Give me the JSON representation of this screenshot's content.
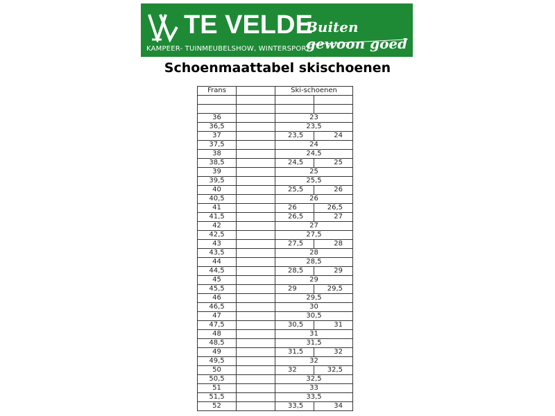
{
  "logo": {
    "brand": "TE VELDE",
    "subtitle": "KAMPEER- TUINMEUBELSHOW, WINTERSPORT",
    "slogan": "Buiten gewoon goed",
    "color": "#1e8a35"
  },
  "title": "Schoenmaattabel skischoenen",
  "table": {
    "headers": {
      "frans": "Frans",
      "extra": "",
      "ski": "Ski-schoenen"
    },
    "rows": [
      {
        "frans": "36",
        "ski": [
          "23"
        ]
      },
      {
        "frans": "36,5",
        "ski": [
          "23,5"
        ]
      },
      {
        "frans": "37",
        "ski": [
          "23,5",
          "24"
        ]
      },
      {
        "frans": "37,5",
        "ski": [
          "24"
        ]
      },
      {
        "frans": "38",
        "ski": [
          "24,5"
        ]
      },
      {
        "frans": "38,5",
        "ski": [
          "24,5",
          "25"
        ]
      },
      {
        "frans": "39",
        "ski": [
          "25"
        ]
      },
      {
        "frans": "39,5",
        "ski": [
          "25,5"
        ]
      },
      {
        "frans": "40",
        "ski": [
          "25,5",
          "26"
        ]
      },
      {
        "frans": "40,5",
        "ski": [
          "26"
        ]
      },
      {
        "frans": "41",
        "ski": [
          "26",
          "26,5"
        ]
      },
      {
        "frans": "41,5",
        "ski": [
          "26,5",
          "27"
        ]
      },
      {
        "frans": "42",
        "ski": [
          "27"
        ]
      },
      {
        "frans": "42,5",
        "ski": [
          "27,5"
        ]
      },
      {
        "frans": "43",
        "ski": [
          "27,5",
          "28"
        ]
      },
      {
        "frans": "43,5",
        "ski": [
          "28"
        ]
      },
      {
        "frans": "44",
        "ski": [
          "28,5"
        ]
      },
      {
        "frans": "44,5",
        "ski": [
          "28,5",
          "29"
        ]
      },
      {
        "frans": "45",
        "ski": [
          "29"
        ]
      },
      {
        "frans": "45,5",
        "ski": [
          "29",
          "29,5"
        ]
      },
      {
        "frans": "46",
        "ski": [
          "29,5"
        ]
      },
      {
        "frans": "46,5",
        "ski": [
          "30"
        ]
      },
      {
        "frans": "47",
        "ski": [
          "30,5"
        ]
      },
      {
        "frans": "47,5",
        "ski": [
          "30,5",
          "31"
        ]
      },
      {
        "frans": "48",
        "ski": [
          "31"
        ]
      },
      {
        "frans": "48,5",
        "ski": [
          "31,5"
        ]
      },
      {
        "frans": "49",
        "ski": [
          "31,5",
          "32"
        ]
      },
      {
        "frans": "49,5",
        "ski": [
          "32"
        ]
      },
      {
        "frans": "50",
        "ski": [
          "32",
          "32,5"
        ]
      },
      {
        "frans": "50,5",
        "ski": [
          "32,5"
        ]
      },
      {
        "frans": "51",
        "ski": [
          "33"
        ]
      },
      {
        "frans": "51,5",
        "ski": [
          "33,5"
        ]
      },
      {
        "frans": "52",
        "ski": [
          "33,5",
          "34"
        ]
      }
    ]
  }
}
